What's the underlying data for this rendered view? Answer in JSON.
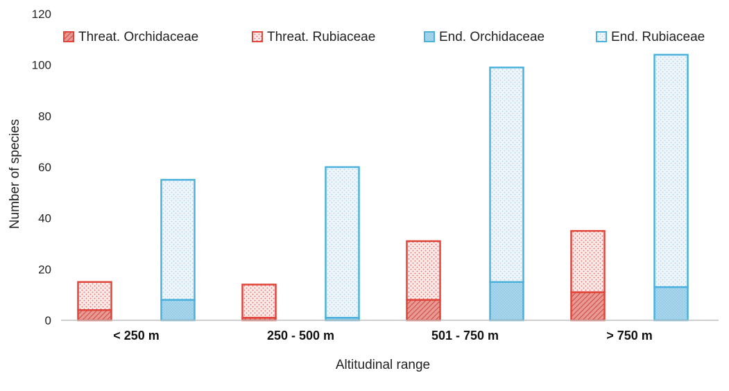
{
  "chart_data": {
    "type": "bar",
    "stacked": true,
    "categories": [
      "< 250 m",
      "250 - 500 m",
      "501 - 750 m",
      "> 750 m"
    ],
    "stacks": [
      {
        "name": "threatened",
        "series": [
          {
            "name": "Threat. Orchidaceae",
            "values": [
              4,
              1,
              8,
              11
            ]
          },
          {
            "name": "Threat. Rubiaceae",
            "values": [
              11,
              13,
              23,
              24
            ]
          }
        ]
      },
      {
        "name": "endemic",
        "series": [
          {
            "name": "End. Orchidaceae",
            "values": [
              8,
              1,
              15,
              13
            ]
          },
          {
            "name": "End. Rubiaceae",
            "values": [
              47,
              59,
              84,
              91
            ]
          }
        ]
      }
    ],
    "legend": [
      "Threat. Orchidaceae",
      "Threat. Rubiaceae",
      "End. Orchidaceae",
      "End. Rubiaceae"
    ],
    "legend_position": "top",
    "xlabel": "Altitudinal range",
    "ylabel": "Number of species",
    "ylim": [
      0,
      120
    ],
    "yticks": [
      "0",
      "20",
      "40",
      "60",
      "80",
      "100",
      "120"
    ],
    "grid": false,
    "colors": {
      "threat_stroke": "#e0443a",
      "threat_fill": "#f3c5c2",
      "end_stroke": "#4ab0dc",
      "end_fill": "#cde6f2",
      "end_light_fill": "#e6f2f8"
    }
  }
}
